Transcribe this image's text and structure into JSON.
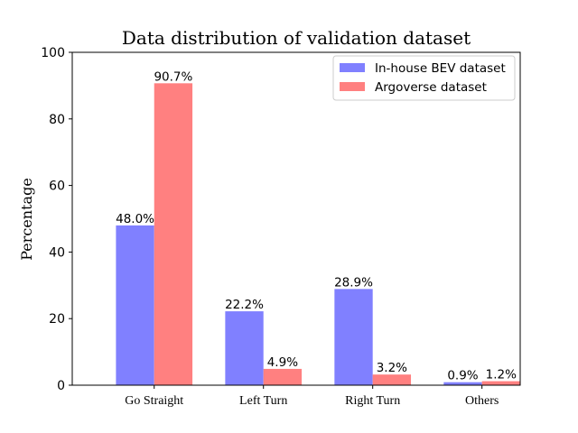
{
  "chart_data": {
    "type": "bar",
    "title": "Data distribution of validation dataset",
    "xlabel": "",
    "ylabel": "Percentage",
    "categories": [
      "Go Straight",
      "Left Turn",
      "Right Turn",
      "Others"
    ],
    "ylim": [
      0,
      100
    ],
    "yticks": [
      0,
      20,
      40,
      60,
      80,
      100
    ],
    "grid": false,
    "legend_position": "top-right",
    "series": [
      {
        "name": "In-house BEV dataset",
        "color": "#8080ff",
        "values": [
          48.0,
          22.2,
          28.9,
          0.9
        ],
        "labels": [
          "48.0%",
          "22.2%",
          "28.9%",
          "0.9%"
        ]
      },
      {
        "name": "Argoverse dataset",
        "color": "#ff8080",
        "values": [
          90.7,
          4.9,
          3.2,
          1.2
        ],
        "labels": [
          "90.7%",
          "4.9%",
          "3.2%",
          "1.2%"
        ]
      }
    ]
  }
}
